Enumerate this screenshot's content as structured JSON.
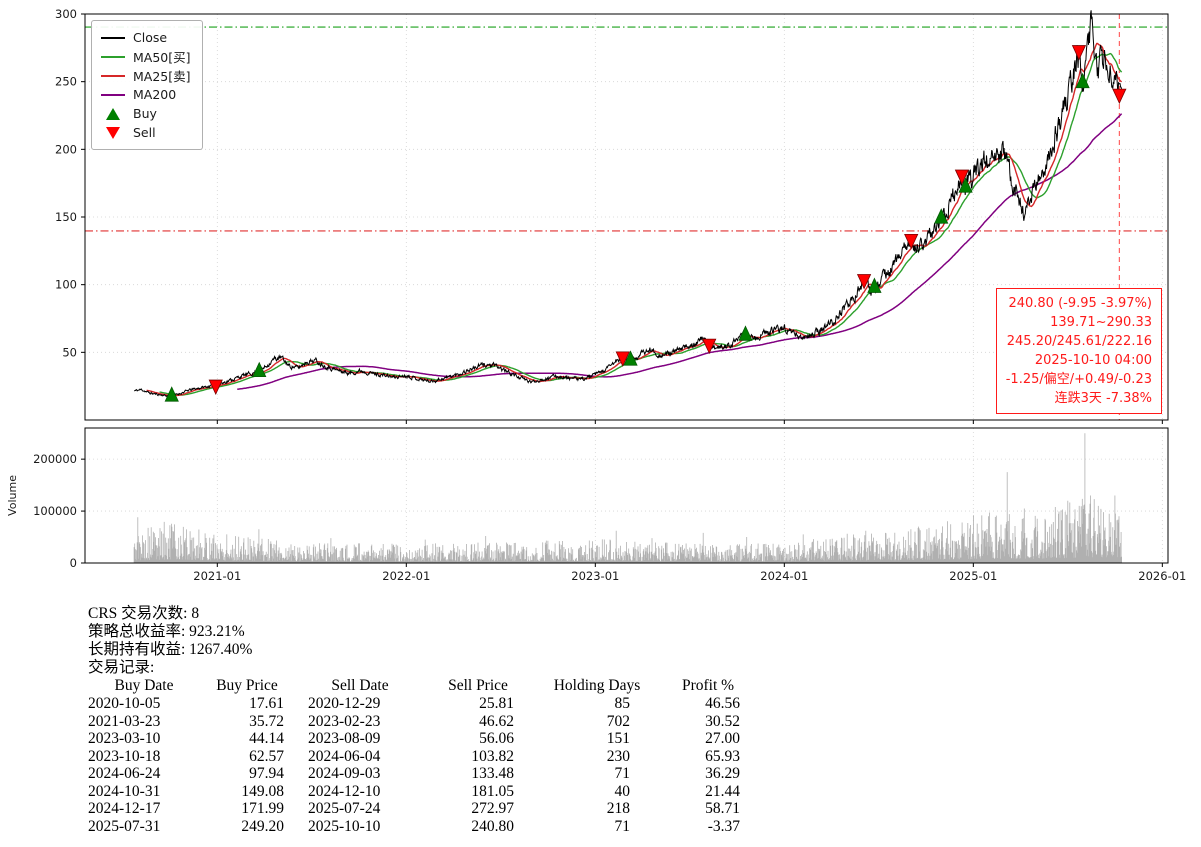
{
  "colors": {
    "close": "#000000",
    "ma50": "#2ca02c",
    "ma25": "#d62728",
    "ma200": "#800080",
    "buy": "#008000",
    "sell": "#ff0000",
    "volume": "#b0b0b0",
    "grid": "#d4d4d4",
    "hline_upper": "#1aa01a",
    "hline_lower": "#e03030",
    "vline": "#ff5555",
    "annotation": "#ff1a1a"
  },
  "chart_data": {
    "type": "line",
    "title": "",
    "main": {
      "xlim": [
        2020.3,
        2026.03
      ],
      "ylim": [
        0,
        300
      ],
      "yticks": [
        50,
        100,
        150,
        200,
        250,
        300
      ],
      "xticks": [
        {
          "v": 2021,
          "label": "2021-01"
        },
        {
          "v": 2022,
          "label": "2022-01"
        },
        {
          "v": 2023,
          "label": "2023-01"
        },
        {
          "v": 2024,
          "label": "2024-01"
        },
        {
          "v": 2025,
          "label": "2025-01"
        },
        {
          "v": 2026,
          "label": "2026-01"
        }
      ],
      "noise_seed": 11,
      "noise_amp": 0.032,
      "close_anchors": [
        [
          2020.56,
          21.5
        ],
        [
          2020.6,
          22.5
        ],
        [
          2020.64,
          20.0
        ],
        [
          2020.68,
          19.0
        ],
        [
          2020.75,
          17.6
        ],
        [
          2020.8,
          19.5
        ],
        [
          2020.85,
          22.0
        ],
        [
          2020.9,
          23.5
        ],
        [
          2020.99,
          25.8
        ],
        [
          2021.03,
          27.5
        ],
        [
          2021.08,
          30.0
        ],
        [
          2021.14,
          33.0
        ],
        [
          2021.22,
          35.7
        ],
        [
          2021.26,
          40.0
        ],
        [
          2021.3,
          45.0
        ],
        [
          2021.34,
          46.0
        ],
        [
          2021.38,
          40.0
        ],
        [
          2021.43,
          38.5
        ],
        [
          2021.47,
          43.0
        ],
        [
          2021.52,
          44.0
        ],
        [
          2021.57,
          40.0
        ],
        [
          2021.63,
          37.0
        ],
        [
          2021.7,
          34.5
        ],
        [
          2021.76,
          36.5
        ],
        [
          2021.82,
          34.5
        ],
        [
          2021.88,
          33.0
        ],
        [
          2021.94,
          31.5
        ],
        [
          2022.0,
          33.0
        ],
        [
          2022.06,
          30.5
        ],
        [
          2022.13,
          28.5
        ],
        [
          2022.19,
          30.5
        ],
        [
          2022.27,
          33.5
        ],
        [
          2022.34,
          37.5
        ],
        [
          2022.41,
          41.0
        ],
        [
          2022.47,
          40.0
        ],
        [
          2022.53,
          36.0
        ],
        [
          2022.6,
          31.5
        ],
        [
          2022.66,
          28.0
        ],
        [
          2022.72,
          30.0
        ],
        [
          2022.79,
          32.5
        ],
        [
          2022.86,
          31.0
        ],
        [
          2022.93,
          30.0
        ],
        [
          2023.0,
          33.5
        ],
        [
          2023.06,
          37.5
        ],
        [
          2023.11,
          43.5
        ],
        [
          2023.15,
          46.6
        ],
        [
          2023.19,
          44.1
        ],
        [
          2023.24,
          48.5
        ],
        [
          2023.29,
          52.0
        ],
        [
          2023.35,
          47.5
        ],
        [
          2023.41,
          50.0
        ],
        [
          2023.47,
          53.0
        ],
        [
          2023.53,
          57.5
        ],
        [
          2023.57,
          60.0
        ],
        [
          2023.6,
          56.1
        ],
        [
          2023.64,
          52.5
        ],
        [
          2023.7,
          55.0
        ],
        [
          2023.75,
          58.5
        ],
        [
          2023.8,
          62.6
        ],
        [
          2023.85,
          60.0
        ],
        [
          2023.9,
          64.0
        ],
        [
          2023.96,
          67.0
        ],
        [
          2024.0,
          68.5
        ],
        [
          2024.05,
          64.0
        ],
        [
          2024.1,
          60.5
        ],
        [
          2024.15,
          63.5
        ],
        [
          2024.21,
          68.0
        ],
        [
          2024.26,
          73.0
        ],
        [
          2024.31,
          81.0
        ],
        [
          2024.36,
          89.0
        ],
        [
          2024.4,
          97.0
        ],
        [
          2024.43,
          103.8
        ],
        [
          2024.455,
          93.5
        ],
        [
          2024.48,
          97.9
        ],
        [
          2024.53,
          106.0
        ],
        [
          2024.58,
          114.0
        ],
        [
          2024.62,
          124.0
        ],
        [
          2024.67,
          133.5
        ],
        [
          2024.7,
          126.0
        ],
        [
          2024.74,
          130.0
        ],
        [
          2024.79,
          141.0
        ],
        [
          2024.83,
          149.1
        ],
        [
          2024.87,
          159.0
        ],
        [
          2024.91,
          170.0
        ],
        [
          2024.94,
          181.1
        ],
        [
          2024.96,
          172.0
        ],
        [
          2025.0,
          179.0
        ],
        [
          2025.04,
          188.0
        ],
        [
          2025.08,
          197.0
        ],
        [
          2025.12,
          190.0
        ],
        [
          2025.16,
          200.0
        ],
        [
          2025.2,
          181.0
        ],
        [
          2025.24,
          161.0
        ],
        [
          2025.27,
          152.0
        ],
        [
          2025.31,
          165.0
        ],
        [
          2025.35,
          179.0
        ],
        [
          2025.4,
          196.0
        ],
        [
          2025.45,
          216.0
        ],
        [
          2025.5,
          240.0
        ],
        [
          2025.54,
          263.0
        ],
        [
          2025.56,
          273.0
        ],
        [
          2025.58,
          249.2
        ],
        [
          2025.6,
          268.0
        ],
        [
          2025.62,
          290.0
        ],
        [
          2025.64,
          278.0
        ],
        [
          2025.66,
          262.0
        ],
        [
          2025.69,
          268.0
        ],
        [
          2025.72,
          252.0
        ],
        [
          2025.75,
          243.0
        ],
        [
          2025.77,
          248.0
        ],
        [
          2025.785,
          240.8
        ]
      ],
      "hlines": [
        {
          "y": 290.33,
          "color_key": "hline_upper",
          "style": "dashdot"
        },
        {
          "y": 139.71,
          "color_key": "hline_lower",
          "style": "dashdot"
        }
      ],
      "vline": {
        "date": "2025-10-10",
        "color_key": "vline",
        "style": "dashed"
      },
      "annotation": {
        "lines": [
          "240.80 (-9.95 -3.97%)",
          "139.71~290.33",
          "245.20/245.61/222.16",
          "2025-10-10 04:00",
          "-1.25/偏空/+0.49/-0.23",
          "连跌3天 -7.38%"
        ]
      },
      "legend": {
        "items": [
          {
            "label": "Close",
            "swatch": "line",
            "color_key": "close"
          },
          {
            "label": "MA50[买]",
            "swatch": "line",
            "color_key": "ma50"
          },
          {
            "label": "MA25[卖]",
            "swatch": "line",
            "color_key": "ma25"
          },
          {
            "label": "MA200",
            "swatch": "line",
            "color_key": "ma200"
          },
          {
            "label": "Buy",
            "swatch": "triangle-up",
            "color_key": "buy"
          },
          {
            "label": "Sell",
            "swatch": "triangle-down",
            "color_key": "sell"
          }
        ]
      }
    },
    "volume": {
      "ylabel": "Volume",
      "ylim": [
        0,
        260000
      ],
      "yticks": [
        {
          "v": 0,
          "label": "0"
        },
        {
          "v": 100000,
          "label": "100000"
        },
        {
          "v": 200000,
          "label": "200000"
        }
      ],
      "seed": 5,
      "anchors": [
        [
          2020.56,
          32000
        ],
        [
          2020.75,
          45000
        ],
        [
          2021.0,
          30000
        ],
        [
          2021.5,
          22000
        ],
        [
          2022.0,
          20000
        ],
        [
          2022.5,
          22000
        ],
        [
          2023.0,
          25000
        ],
        [
          2023.5,
          22000
        ],
        [
          2024.0,
          20000
        ],
        [
          2024.3,
          30000
        ],
        [
          2024.6,
          35000
        ],
        [
          2024.9,
          45000
        ],
        [
          2025.1,
          55000
        ],
        [
          2025.3,
          50000
        ],
        [
          2025.5,
          65000
        ],
        [
          2025.785,
          75000
        ]
      ],
      "spikes": [
        [
          2020.58,
          88000
        ],
        [
          2020.66,
          60000
        ],
        [
          2020.76,
          70000
        ],
        [
          2021.05,
          55000
        ],
        [
          2021.22,
          65000
        ],
        [
          2021.6,
          48000
        ],
        [
          2022.1,
          45000
        ],
        [
          2022.42,
          52000
        ],
        [
          2022.75,
          43000
        ],
        [
          2023.11,
          62000
        ],
        [
          2023.3,
          48000
        ],
        [
          2023.57,
          58000
        ],
        [
          2023.8,
          50000
        ],
        [
          2024.1,
          55000
        ],
        [
          2024.43,
          62000
        ],
        [
          2024.67,
          65000
        ],
        [
          2024.83,
          58000
        ],
        [
          2024.94,
          78000
        ],
        [
          2025.08,
          90000
        ],
        [
          2025.18,
          175000
        ],
        [
          2025.27,
          105000
        ],
        [
          2025.38,
          85000
        ],
        [
          2025.45,
          95000
        ],
        [
          2025.5,
          120000
        ],
        [
          2025.56,
          110000
        ],
        [
          2025.59,
          250000
        ],
        [
          2025.62,
          130000
        ],
        [
          2025.66,
          110000
        ],
        [
          2025.69,
          98000
        ],
        [
          2025.72,
          95000
        ],
        [
          2025.75,
          130000
        ],
        [
          2025.77,
          90000
        ]
      ]
    }
  },
  "summary": {
    "lines": [
      "CRS 交易次数: 8",
      "策略总收益率: 923.21%",
      "长期持有收益: 1267.40%",
      "交易记录:"
    ],
    "table": {
      "headers": [
        "Buy Date",
        "Buy Price",
        "Sell Date",
        "Sell Price",
        "Holding Days",
        "Profit %"
      ],
      "rows": [
        [
          "2020-10-05",
          "17.61",
          "2020-12-29",
          "25.81",
          "85",
          "46.56"
        ],
        [
          "2021-03-23",
          "35.72",
          "2023-02-23",
          "46.62",
          "702",
          "30.52"
        ],
        [
          "2023-03-10",
          "44.14",
          "2023-08-09",
          "56.06",
          "151",
          "27.00"
        ],
        [
          "2023-10-18",
          "62.57",
          "2024-06-04",
          "103.82",
          "230",
          "65.93"
        ],
        [
          "2024-06-24",
          "97.94",
          "2024-09-03",
          "133.48",
          "71",
          "36.29"
        ],
        [
          "2024-10-31",
          "149.08",
          "2024-12-10",
          "181.05",
          "40",
          "21.44"
        ],
        [
          "2024-12-17",
          "171.99",
          "2025-07-24",
          "272.97",
          "218",
          "58.71"
        ],
        [
          "2025-07-31",
          "249.20",
          "2025-10-10",
          "240.80",
          "71",
          "-3.37"
        ]
      ]
    }
  }
}
